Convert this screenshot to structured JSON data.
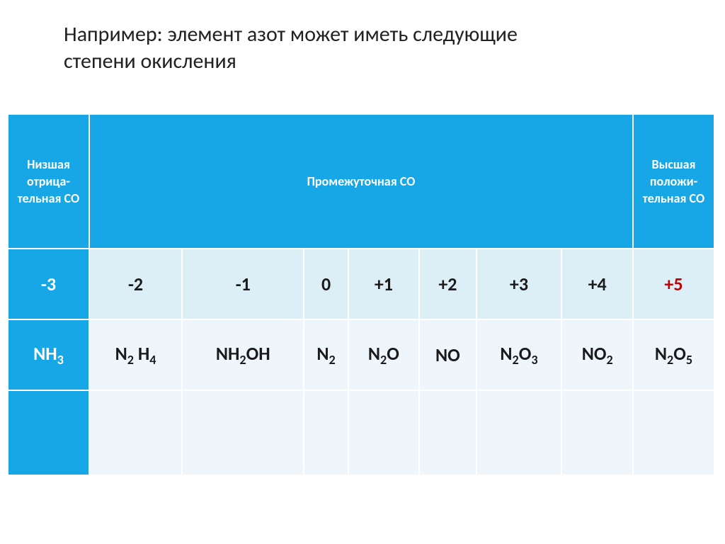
{
  "title_line1": "Например: элемент азот может иметь следующие",
  "title_line2": "степени окисления",
  "table": {
    "header": {
      "left_lines": [
        "Низшая",
        "отрица-",
        "тельная СО"
      ],
      "mid": "Промежуточная СО",
      "right_lines": [
        "Высшая",
        "положи-",
        "тельная СО"
      ]
    },
    "oxidation_row": [
      "-3",
      "-2",
      "-1",
      "0",
      "+1",
      "+2",
      "+3",
      "+4",
      "+5"
    ],
    "formula_row_html": [
      "NH<sub>3</sub>",
      "N<sub>2</sub> H<sub>4</sub>",
      "NH<sub>2</sub>OH",
      "N<sub>2</sub>",
      "N<sub>2</sub>O",
      "NO",
      "N<sub>2</sub>O<sub>3</sub>",
      "NO<sub>2</sub>",
      "N<sub>2</sub>O<sub>5</sub>"
    ],
    "columns": 9,
    "colors": {
      "header_bg": "#17a6e6",
      "header_text": "#ffffff",
      "row1_cell_bg": "#dceff7",
      "row2_cell_bg": "#eef6fb",
      "highlight_text": "#c20000",
      "first_col_bg": "#17a6e6",
      "first_col_text": "#ffffff"
    }
  }
}
